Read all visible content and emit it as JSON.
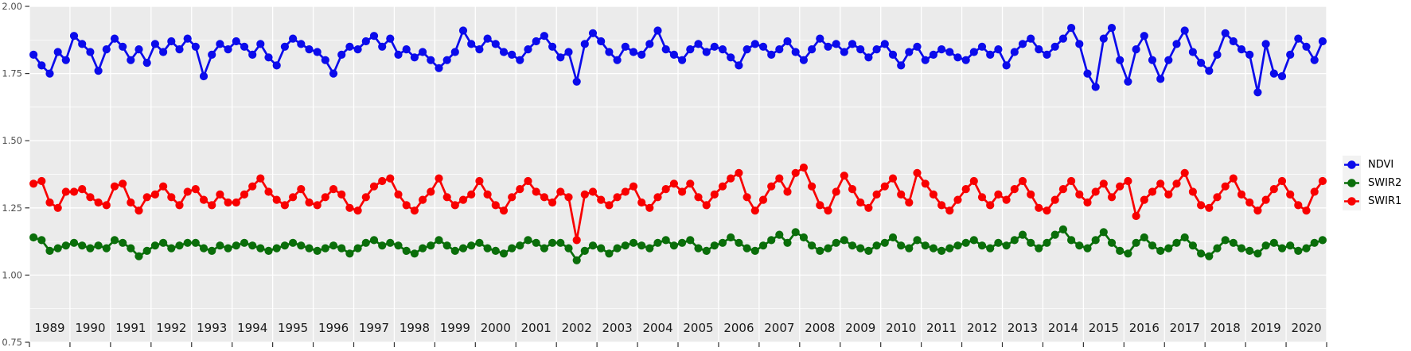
{
  "chart_data": {
    "type": "line",
    "title": "",
    "xlabel": "",
    "ylabel": "",
    "x_axis": {
      "range": [
        1989,
        2021
      ],
      "tick_years": [
        1989,
        1990,
        1991,
        1992,
        1993,
        1994,
        1995,
        1996,
        1997,
        1998,
        1999,
        2000,
        2001,
        2002,
        2003,
        2004,
        2005,
        2006,
        2007,
        2008,
        2009,
        2010,
        2011,
        2012,
        2013,
        2014,
        2015,
        2016,
        2017,
        2018,
        2019,
        2020,
        2021
      ],
      "year_labels": [
        "1989",
        "1990",
        "1991",
        "1992",
        "1993",
        "1994",
        "1995",
        "1996",
        "1997",
        "1998",
        "1999",
        "2000",
        "2001",
        "2002",
        "2003",
        "2004",
        "2005",
        "2006",
        "2007",
        "2008",
        "2009",
        "2010",
        "2011",
        "2012",
        "2013",
        "2014",
        "2015",
        "2016",
        "2017",
        "2018",
        "2019",
        "2020"
      ]
    },
    "y_axis": {
      "range": [
        0.75,
        2.0
      ],
      "ticks": [
        0.75,
        1.0,
        1.25,
        1.5,
        1.75,
        2.0
      ],
      "tick_labels": [
        "0.75",
        "1.00",
        "1.25",
        "1.50",
        "1.75",
        "2.00"
      ],
      "minor_ticks": [
        0.875,
        1.125,
        1.375,
        1.625,
        1.875
      ]
    },
    "style": {
      "panel_bg": "#EBEBEB",
      "grid_color": "#FFFFFF",
      "axis_text_color": "#4D4D4D",
      "year_text_color": "#1A1A1A",
      "tick_mark_color": "#333333"
    },
    "legend": {
      "position": "right",
      "items": [
        {
          "label": "NDVI",
          "color": "#0B0BEB"
        },
        {
          "label": "SWIR2",
          "color": "#0A6E0A"
        },
        {
          "label": "SWIR1",
          "color": "#F80000"
        }
      ]
    },
    "series": [
      {
        "name": "SWIR2",
        "color": "#0A6E0A",
        "t0": 1989.1,
        "dt": 0.2,
        "values": [
          1.14,
          1.13,
          1.09,
          1.1,
          1.11,
          1.12,
          1.11,
          1.1,
          1.11,
          1.1,
          1.13,
          1.12,
          1.1,
          1.07,
          1.09,
          1.11,
          1.12,
          1.1,
          1.11,
          1.12,
          1.12,
          1.1,
          1.09,
          1.11,
          1.1,
          1.11,
          1.12,
          1.11,
          1.1,
          1.09,
          1.1,
          1.11,
          1.12,
          1.11,
          1.1,
          1.09,
          1.1,
          1.11,
          1.1,
          1.08,
          1.1,
          1.12,
          1.13,
          1.11,
          1.12,
          1.11,
          1.09,
          1.08,
          1.1,
          1.11,
          1.13,
          1.11,
          1.09,
          1.1,
          1.11,
          1.12,
          1.1,
          1.09,
          1.08,
          1.1,
          1.11,
          1.13,
          1.12,
          1.1,
          1.12,
          1.12,
          1.1,
          1.055,
          1.09,
          1.11,
          1.1,
          1.08,
          1.1,
          1.11,
          1.12,
          1.11,
          1.1,
          1.12,
          1.13,
          1.11,
          1.12,
          1.13,
          1.1,
          1.09,
          1.11,
          1.12,
          1.14,
          1.12,
          1.1,
          1.09,
          1.11,
          1.13,
          1.15,
          1.12,
          1.16,
          1.14,
          1.11,
          1.09,
          1.1,
          1.12,
          1.13,
          1.11,
          1.1,
          1.09,
          1.11,
          1.12,
          1.14,
          1.11,
          1.1,
          1.13,
          1.11,
          1.1,
          1.09,
          1.1,
          1.11,
          1.12,
          1.13,
          1.11,
          1.1,
          1.12,
          1.11,
          1.13,
          1.15,
          1.12,
          1.1,
          1.12,
          1.15,
          1.17,
          1.13,
          1.11,
          1.1,
          1.13,
          1.16,
          1.12,
          1.09,
          1.08,
          1.12,
          1.14,
          1.11,
          1.09,
          1.1,
          1.12,
          1.14,
          1.11,
          1.08,
          1.07,
          1.1,
          1.13,
          1.12,
          1.1,
          1.09,
          1.08,
          1.11,
          1.12,
          1.1,
          1.11,
          1.09,
          1.1,
          1.12,
          1.13
        ]
      },
      {
        "name": "SWIR1",
        "color": "#F80000",
        "t0": 1989.1,
        "dt": 0.2,
        "values": [
          1.34,
          1.35,
          1.27,
          1.25,
          1.31,
          1.31,
          1.32,
          1.29,
          1.27,
          1.26,
          1.33,
          1.34,
          1.27,
          1.24,
          1.29,
          1.3,
          1.33,
          1.29,
          1.26,
          1.31,
          1.32,
          1.28,
          1.26,
          1.3,
          1.27,
          1.27,
          1.3,
          1.33,
          1.36,
          1.31,
          1.28,
          1.26,
          1.29,
          1.32,
          1.27,
          1.26,
          1.29,
          1.32,
          1.3,
          1.25,
          1.24,
          1.29,
          1.33,
          1.35,
          1.36,
          1.3,
          1.26,
          1.24,
          1.28,
          1.31,
          1.36,
          1.29,
          1.26,
          1.28,
          1.3,
          1.35,
          1.3,
          1.26,
          1.24,
          1.29,
          1.32,
          1.35,
          1.31,
          1.29,
          1.27,
          1.31,
          1.29,
          1.13,
          1.3,
          1.31,
          1.28,
          1.26,
          1.29,
          1.31,
          1.33,
          1.27,
          1.25,
          1.29,
          1.32,
          1.34,
          1.31,
          1.34,
          1.29,
          1.26,
          1.3,
          1.33,
          1.36,
          1.38,
          1.29,
          1.24,
          1.28,
          1.33,
          1.36,
          1.31,
          1.38,
          1.4,
          1.33,
          1.26,
          1.24,
          1.31,
          1.37,
          1.32,
          1.27,
          1.25,
          1.3,
          1.33,
          1.36,
          1.3,
          1.27,
          1.38,
          1.34,
          1.3,
          1.26,
          1.24,
          1.28,
          1.32,
          1.35,
          1.29,
          1.26,
          1.3,
          1.28,
          1.32,
          1.35,
          1.3,
          1.25,
          1.24,
          1.28,
          1.32,
          1.35,
          1.3,
          1.27,
          1.31,
          1.34,
          1.29,
          1.33,
          1.35,
          1.22,
          1.28,
          1.31,
          1.34,
          1.3,
          1.34,
          1.38,
          1.31,
          1.26,
          1.25,
          1.29,
          1.33,
          1.36,
          1.3,
          1.27,
          1.24,
          1.28,
          1.32,
          1.35,
          1.3,
          1.26,
          1.24,
          1.31,
          1.35
        ]
      },
      {
        "name": "NDVI",
        "color": "#0B0BEB",
        "t0": 1989.1,
        "dt": 0.2,
        "values": [
          1.82,
          1.78,
          1.75,
          1.83,
          1.8,
          1.89,
          1.86,
          1.83,
          1.76,
          1.84,
          1.88,
          1.85,
          1.8,
          1.84,
          1.79,
          1.86,
          1.83,
          1.87,
          1.84,
          1.88,
          1.85,
          1.74,
          1.82,
          1.86,
          1.84,
          1.87,
          1.85,
          1.82,
          1.86,
          1.81,
          1.78,
          1.85,
          1.88,
          1.86,
          1.84,
          1.83,
          1.8,
          1.75,
          1.82,
          1.85,
          1.84,
          1.87,
          1.89,
          1.85,
          1.88,
          1.82,
          1.84,
          1.81,
          1.83,
          1.8,
          1.77,
          1.8,
          1.83,
          1.91,
          1.86,
          1.84,
          1.88,
          1.86,
          1.83,
          1.82,
          1.8,
          1.84,
          1.87,
          1.89,
          1.85,
          1.81,
          1.83,
          1.72,
          1.86,
          1.9,
          1.87,
          1.83,
          1.8,
          1.85,
          1.83,
          1.82,
          1.86,
          1.91,
          1.84,
          1.82,
          1.8,
          1.84,
          1.86,
          1.83,
          1.85,
          1.84,
          1.81,
          1.78,
          1.84,
          1.86,
          1.85,
          1.82,
          1.84,
          1.87,
          1.83,
          1.8,
          1.84,
          1.88,
          1.85,
          1.86,
          1.83,
          1.86,
          1.84,
          1.81,
          1.84,
          1.86,
          1.82,
          1.78,
          1.83,
          1.85,
          1.8,
          1.82,
          1.84,
          1.83,
          1.81,
          1.8,
          1.83,
          1.85,
          1.82,
          1.84,
          1.78,
          1.83,
          1.86,
          1.88,
          1.84,
          1.82,
          1.85,
          1.88,
          1.92,
          1.86,
          1.75,
          1.7,
          1.88,
          1.92,
          1.8,
          1.72,
          1.84,
          1.89,
          1.8,
          1.73,
          1.8,
          1.86,
          1.91,
          1.83,
          1.79,
          1.76,
          1.82,
          1.9,
          1.87,
          1.84,
          1.82,
          1.68,
          1.86,
          1.75,
          1.74,
          1.82,
          1.88,
          1.85,
          1.8,
          1.87
        ]
      }
    ]
  }
}
